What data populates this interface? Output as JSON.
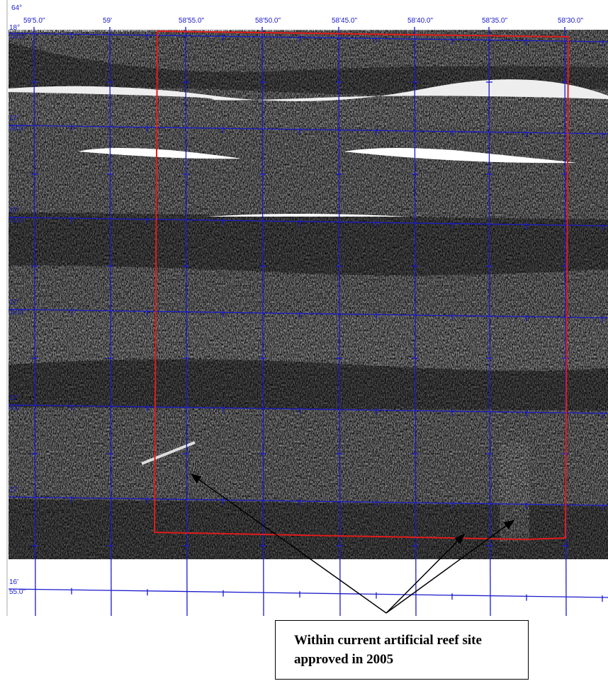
{
  "map": {
    "top_degree": "64°",
    "top_labels": [
      "59'5.0\"",
      "59'",
      "58'55.0\"",
      "58'50.0\"",
      "58'45.0\"",
      "58'40.0\"",
      "58'35.0\"",
      "58'30.0\""
    ],
    "left_labels": [
      {
        "degree": "18°",
        "minute": "25.0\""
      },
      {
        "degree": "17'",
        "minute": "20.0\""
      },
      {
        "degree": "17'",
        "minute": "15.0\""
      },
      {
        "degree": "17'",
        "minute": "10.0\""
      },
      {
        "degree": "17'",
        "minute": "5.0\""
      },
      {
        "degree": "17'",
        "minute": null
      },
      {
        "degree": "16'",
        "minute": "55.0\""
      }
    ],
    "annotation": "Within current artificial reef site approved in 2005"
  }
}
